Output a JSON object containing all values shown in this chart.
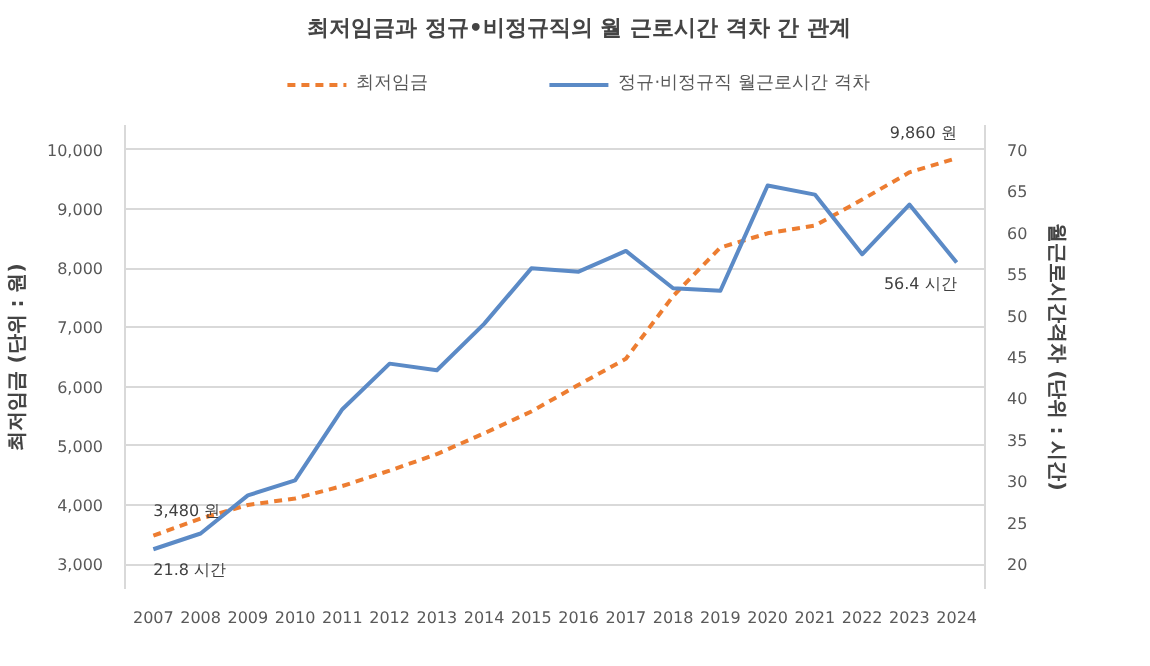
{
  "chart_data": {
    "type": "line",
    "title": "최저임금과 정규•비정규직의 월 근로시간 격차 간 관계",
    "ylabel": "최저임금 (단위 : 원)",
    "y2label": "월근로시간격차 (단위 : 시간)",
    "categories": [
      "2007",
      "2008",
      "2009",
      "2010",
      "2011",
      "2012",
      "2013",
      "2014",
      "2015",
      "2016",
      "2017",
      "2018",
      "2019",
      "2020",
      "2021",
      "2022",
      "2023",
      "2024"
    ],
    "series": [
      {
        "name": "최저임금",
        "color": "#ed7d31",
        "line_style": "dashed",
        "values": [
          3480,
          3770,
          4000,
          4110,
          4320,
          4580,
          4860,
          5210,
          5580,
          6030,
          6470,
          7530,
          8350,
          8590,
          8720,
          9160,
          9620,
          9860
        ],
        "value_labels": [
          "3,480 원",
          null,
          null,
          null,
          null,
          null,
          null,
          null,
          null,
          null,
          null,
          null,
          null,
          null,
          null,
          null,
          null,
          "9,860 원"
        ]
      },
      {
        "name": "정규·비정규직 월근로시간 격차",
        "color": "#5b8ac6",
        "line_style": "solid",
        "axis": "y2",
        "values": [
          21.8,
          23.7,
          28.3,
          30.1,
          38.7,
          44.2,
          43.4,
          49.0,
          55.7,
          55.3,
          57.8,
          53.3,
          53.0,
          65.7,
          64.6,
          57.4,
          63.4,
          56.4
        ],
        "value_labels": [
          "21.8 시간",
          null,
          null,
          null,
          null,
          null,
          null,
          null,
          null,
          null,
          null,
          null,
          null,
          null,
          null,
          null,
          null,
          "56.4 시간"
        ]
      }
    ],
    "ylim": [
      2580,
      10420
    ],
    "yticks": [
      {
        "value": 3000,
        "label": "3,000"
      },
      {
        "value": 4000,
        "label": "4,000"
      },
      {
        "value": 5000,
        "label": "5,000"
      },
      {
        "value": 6000,
        "label": "6,000"
      },
      {
        "value": 7000,
        "label": "7,000"
      },
      {
        "value": 8000,
        "label": "8,000"
      },
      {
        "value": 9000,
        "label": "9,000"
      },
      {
        "value": 10000,
        "label": "10,000"
      }
    ],
    "y2lim": [
      17,
      73
    ],
    "y2ticks": [
      20,
      25,
      30,
      35,
      40,
      45,
      50,
      55,
      60,
      65,
      70
    ],
    "grid": "y",
    "legend": "top",
    "marker": "none"
  }
}
